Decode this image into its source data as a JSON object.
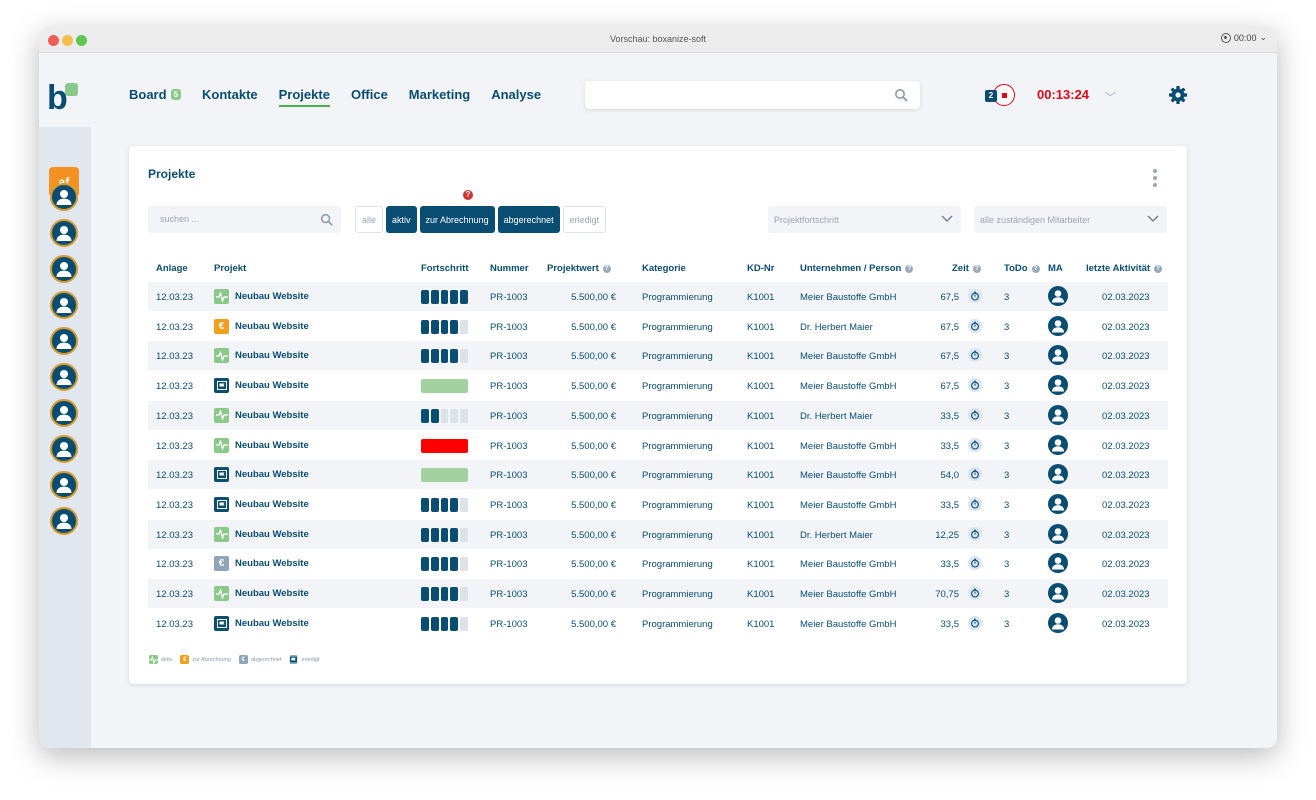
{
  "window": {
    "title": "Vorschau: boxanize-soft",
    "recording_time": "00:00"
  },
  "sidebar": {
    "user_initials": "af",
    "avatar_count": 10
  },
  "nav": {
    "items": [
      {
        "label": "Board",
        "badge": "5"
      },
      {
        "label": "Kontakte"
      },
      {
        "label": "Projekte",
        "active": true
      },
      {
        "label": "Office"
      },
      {
        "label": "Marketing"
      },
      {
        "label": "Analyse"
      }
    ]
  },
  "topbar": {
    "search_placeholder": "",
    "timer_count": "2",
    "timer": "00:13:24"
  },
  "card": {
    "title": "Projekte",
    "search_placeholder": "suchen ...",
    "filters": [
      "alle",
      "aktiv",
      "zur Abrechnung",
      "abgerechnet",
      "erledigt"
    ],
    "select_progress": "Projektfortschritt",
    "select_staff": "alle zuständigen Mitarbeiter"
  },
  "table": {
    "headers": {
      "anlage": "Anlage",
      "projekt": "Projekt",
      "fortschritt": "Fortschritt",
      "nummer": "Nummer",
      "projektwert": "Projektwert",
      "kategorie": "Kategorie",
      "kdnr": "KD-Nr",
      "unternehmen": "Unternehmen / Person",
      "zeit": "Zeit",
      "todo": "ToDo",
      "ma": "MA",
      "aktivitaet": "letzte Aktivität"
    },
    "rows": [
      {
        "anlage": "12.03.23",
        "status": "aktiv",
        "projekt": "Neubau Website",
        "progress": 5,
        "bar": "",
        "nummer": "PR-1003",
        "wert": "5.500,00 €",
        "kategorie": "Programmierung",
        "kdnr": "K1001",
        "firma": "Meier Baustoffe GmbH",
        "zeit": "67,5",
        "todo": "3",
        "aktiv": "02.03.2023"
      },
      {
        "anlage": "12.03.23",
        "status": "zur",
        "projekt": "Neubau Website",
        "progress": 4,
        "bar": "",
        "nummer": "PR-1003",
        "wert": "5.500,00 €",
        "kategorie": "Programmierung",
        "kdnr": "K1001",
        "firma": "Dr. Herbert Maier",
        "zeit": "67,5",
        "todo": "3",
        "aktiv": "02.03.2023"
      },
      {
        "anlage": "12.03.23",
        "status": "aktiv",
        "projekt": "Neubau Website",
        "progress": 4,
        "bar": "",
        "nummer": "PR-1003",
        "wert": "5.500,00 €",
        "kategorie": "Programmierung",
        "kdnr": "K1001",
        "firma": "Meier Baustoffe GmbH",
        "zeit": "67,5",
        "todo": "3",
        "aktiv": "02.03.2023"
      },
      {
        "anlage": "12.03.23",
        "status": "erl",
        "projekt": "Neubau Website",
        "progress": 5,
        "bar": "green",
        "nummer": "PR-1003",
        "wert": "5.500,00 €",
        "kategorie": "Programmierung",
        "kdnr": "K1001",
        "firma": "Meier Baustoffe GmbH",
        "zeit": "67,5",
        "todo": "3",
        "aktiv": "02.03.2023"
      },
      {
        "anlage": "12.03.23",
        "status": "aktiv",
        "projekt": "Neubau Website",
        "progress": 2,
        "bar": "",
        "nummer": "PR-1003",
        "wert": "5.500,00 €",
        "kategorie": "Programmierung",
        "kdnr": "K1001",
        "firma": "Dr. Herbert Maier",
        "zeit": "33,5",
        "todo": "3",
        "aktiv": "02.03.2023"
      },
      {
        "anlage": "12.03.23",
        "status": "aktiv",
        "projekt": "Neubau Website",
        "progress": 5,
        "bar": "red",
        "nummer": "PR-1003",
        "wert": "5.500,00 €",
        "kategorie": "Programmierung",
        "kdnr": "K1001",
        "firma": "Meier Baustoffe GmbH",
        "zeit": "33,5",
        "todo": "3",
        "aktiv": "02.03.2023"
      },
      {
        "anlage": "12.03.23",
        "status": "erl",
        "projekt": "Neubau Website",
        "progress": 5,
        "bar": "green",
        "nummer": "PR-1003",
        "wert": "5.500,00 €",
        "kategorie": "Programmierung",
        "kdnr": "K1001",
        "firma": "Meier Baustoffe GmbH",
        "zeit": "54,0",
        "todo": "3",
        "aktiv": "02.03.2023"
      },
      {
        "anlage": "12.03.23",
        "status": "erl",
        "projekt": "Neubau Website",
        "progress": 4,
        "bar": "",
        "nummer": "PR-1003",
        "wert": "5.500,00 €",
        "kategorie": "Programmierung",
        "kdnr": "K1001",
        "firma": "Meier Baustoffe GmbH",
        "zeit": "33,5",
        "todo": "3",
        "aktiv": "02.03.2023"
      },
      {
        "anlage": "12.03.23",
        "status": "aktiv",
        "projekt": "Neubau Website",
        "progress": 4,
        "bar": "",
        "nummer": "PR-1003",
        "wert": "5.500,00 €",
        "kategorie": "Programmierung",
        "kdnr": "K1001",
        "firma": "Dr. Herbert Maier",
        "zeit": "12,25",
        "todo": "3",
        "aktiv": "02.03.2023"
      },
      {
        "anlage": "12.03.23",
        "status": "abg",
        "projekt": "Neubau Website",
        "progress": 4,
        "bar": "",
        "nummer": "PR-1003",
        "wert": "5.500,00 €",
        "kategorie": "Programmierung",
        "kdnr": "K1001",
        "firma": "Meier Baustoffe GmbH",
        "zeit": "33,5",
        "todo": "3",
        "aktiv": "02.03.2023"
      },
      {
        "anlage": "12.03.23",
        "status": "aktiv",
        "projekt": "Neubau Website",
        "progress": 4,
        "bar": "",
        "nummer": "PR-1003",
        "wert": "5.500,00 €",
        "kategorie": "Programmierung",
        "kdnr": "K1001",
        "firma": "Meier Baustoffe GmbH",
        "zeit": "70,75",
        "todo": "3",
        "aktiv": "02.03.2023"
      },
      {
        "anlage": "12.03.23",
        "status": "erl",
        "projekt": "Neubau Website",
        "progress": 4,
        "bar": "",
        "nummer": "PR-1003",
        "wert": "5.500,00 €",
        "kategorie": "Programmierung",
        "kdnr": "K1001",
        "firma": "Meier Baustoffe GmbH",
        "zeit": "33,5",
        "todo": "3",
        "aktiv": "02.03.2023"
      }
    ]
  },
  "legend": [
    {
      "status": "aktiv",
      "label": "aktiv"
    },
    {
      "status": "zur",
      "label": "zur Abrechnung"
    },
    {
      "status": "abg",
      "label": "abgerechnet"
    },
    {
      "status": "erl",
      "label": "erledigt"
    }
  ],
  "colors": {
    "primary": "#0a4d73",
    "accent_green": "#8bc98b",
    "alert_red": "#e30613",
    "orange": "#f39122",
    "bar_green": "#a3d1a0",
    "bar_red": "#ff0000"
  }
}
